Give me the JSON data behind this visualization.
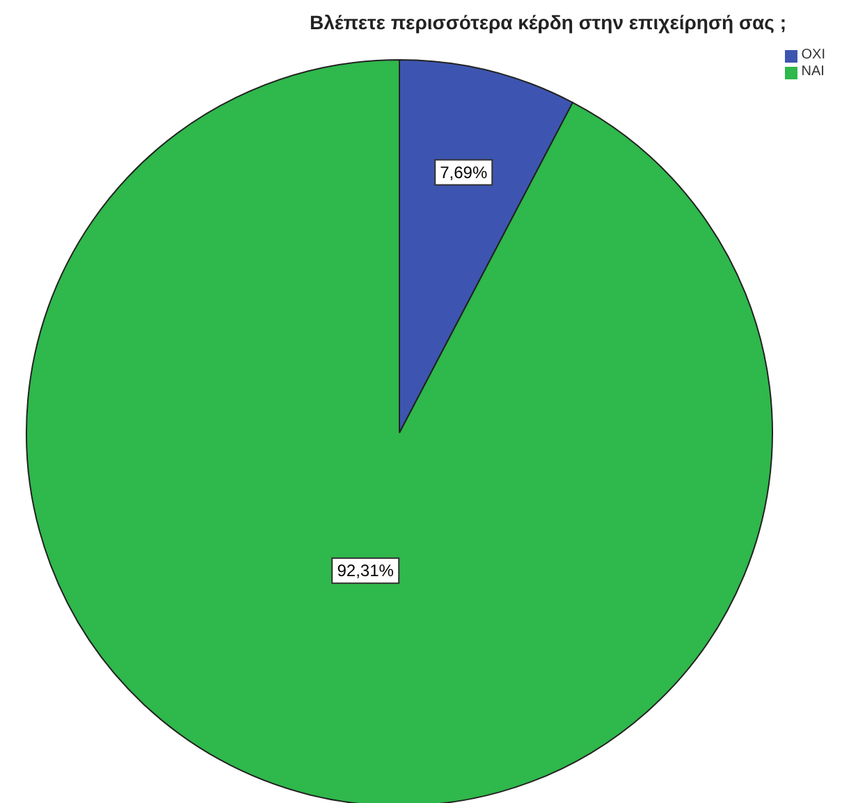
{
  "chart_data": {
    "type": "pie",
    "title": "Βλέπετε περισσότερα κέρδη στην επιχείρησή σας ;",
    "categories": [
      "ΟΧΙ",
      "ΝΑΙ"
    ],
    "values": [
      7.69,
      92.31
    ],
    "colors": [
      "#3d55b0",
      "#2fb84b"
    ],
    "value_labels": [
      "7,69%",
      "92,31%"
    ],
    "legend": "top right"
  }
}
